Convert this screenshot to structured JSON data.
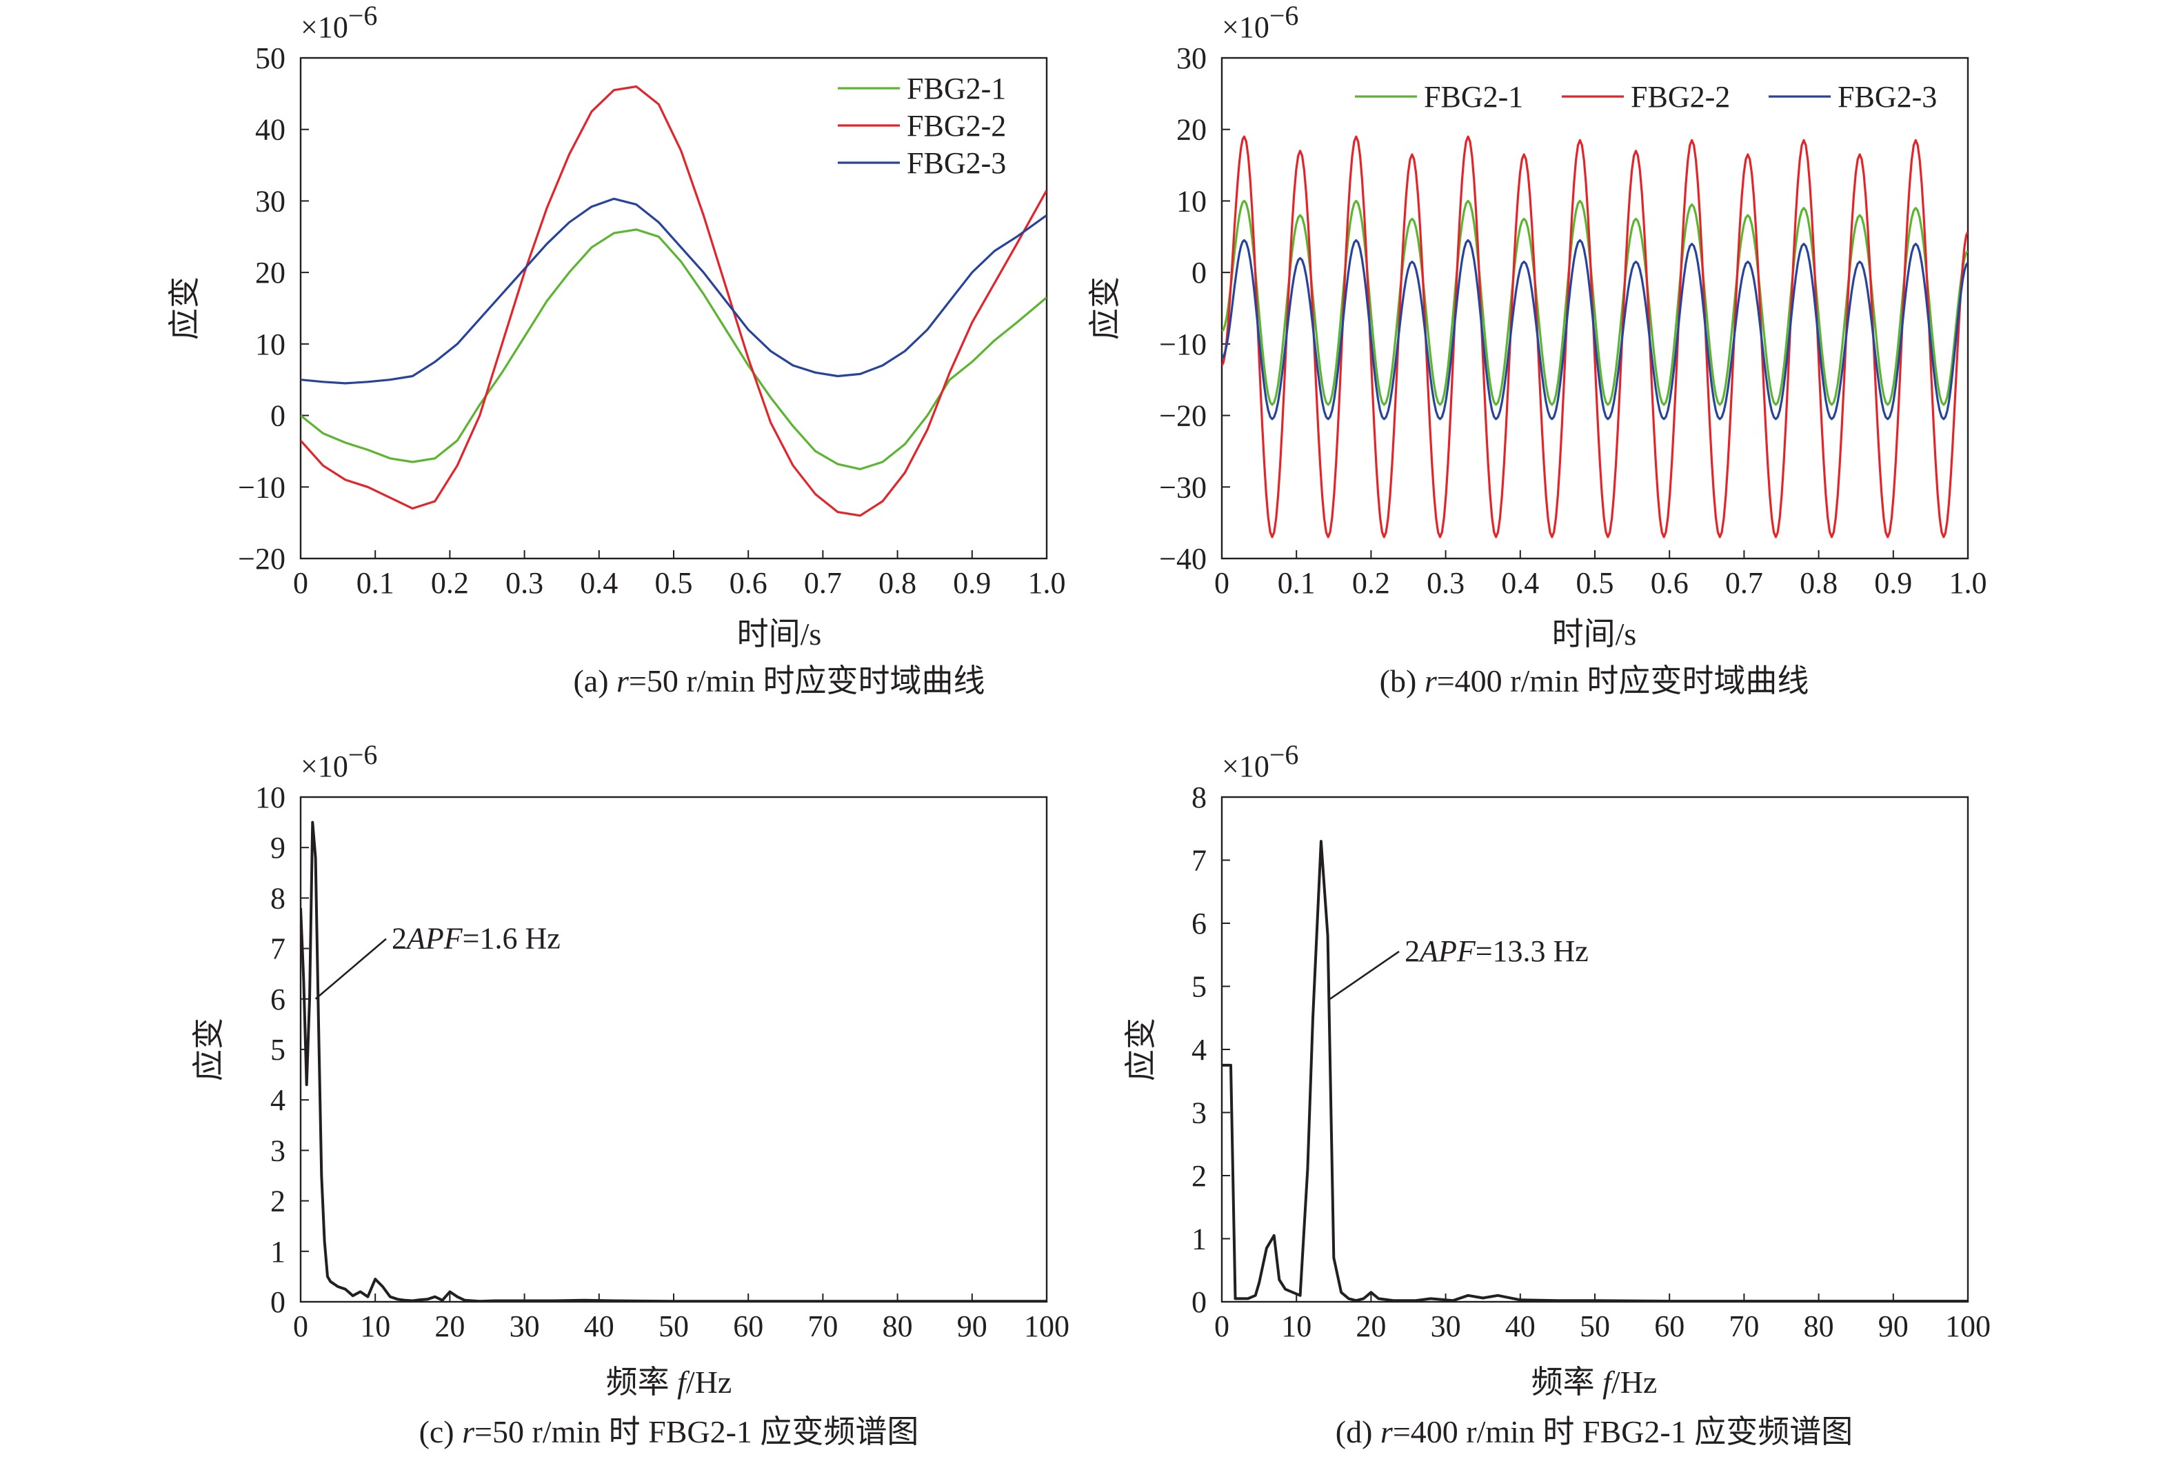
{
  "colors": {
    "FBG2-1": "#5cb531",
    "FBG2-2": "#e2252b",
    "FBG2-3": "#27449a",
    "spectrum": "#231f20",
    "axis": "#231f20"
  },
  "chart_data": [
    {
      "id": "a",
      "type": "line",
      "caption": {
        "prefix": "(a) ",
        "var": "r",
        "rest": "=50 r/min 时应变时域曲线"
      },
      "xlabel": "时间/s",
      "ylabel": "应变",
      "yexp": "×10",
      "yexp_power": "−6",
      "xlim": [
        0,
        1.0
      ],
      "ylim": [
        -20,
        50
      ],
      "xticks": [
        "0",
        "0.1",
        "0.2",
        "0.3",
        "0.4",
        "0.5",
        "0.6",
        "0.7",
        "0.8",
        "0.9",
        "1.0"
      ],
      "yticks": [
        "−20",
        "−10",
        "0",
        "10",
        "20",
        "30",
        "40",
        "50"
      ],
      "ytick_values": [
        -20,
        -10,
        0,
        10,
        20,
        30,
        40,
        50
      ],
      "legend_placement": "top-right",
      "series": [
        {
          "name": "FBG2-1",
          "x": [
            0,
            0.03,
            0.06,
            0.09,
            0.12,
            0.15,
            0.18,
            0.21,
            0.24,
            0.27,
            0.3,
            0.33,
            0.36,
            0.39,
            0.42,
            0.45,
            0.48,
            0.51,
            0.54,
            0.57,
            0.6,
            0.63,
            0.66,
            0.69,
            0.72,
            0.75,
            0.78,
            0.81,
            0.84,
            0.87,
            0.9,
            0.93,
            0.96,
            1.0
          ],
          "values": [
            0,
            -2.5,
            -3.8,
            -4.8,
            -6,
            -6.5,
            -6,
            -3.5,
            1.5,
            6,
            11,
            16,
            20,
            23.5,
            25.5,
            26,
            25,
            21.5,
            17,
            12,
            7,
            2.5,
            -1.5,
            -5,
            -6.8,
            -7.5,
            -6.5,
            -4,
            0,
            5,
            7.5,
            10.5,
            13,
            16.5
          ]
        },
        {
          "name": "FBG2-2",
          "x": [
            0,
            0.03,
            0.06,
            0.09,
            0.12,
            0.15,
            0.18,
            0.21,
            0.24,
            0.27,
            0.3,
            0.33,
            0.36,
            0.39,
            0.42,
            0.45,
            0.48,
            0.51,
            0.54,
            0.57,
            0.6,
            0.63,
            0.66,
            0.69,
            0.72,
            0.75,
            0.78,
            0.81,
            0.84,
            0.87,
            0.9,
            0.93,
            0.96,
            1.0
          ],
          "values": [
            -3.5,
            -7,
            -9,
            -10,
            -11.5,
            -13,
            -12,
            -7,
            0,
            10,
            20,
            29,
            36.5,
            42.5,
            45.5,
            46,
            43.5,
            37,
            28,
            18,
            8,
            -1,
            -7,
            -11,
            -13.5,
            -14,
            -12,
            -8,
            -2,
            6,
            13,
            18.5,
            24,
            31.5
          ]
        },
        {
          "name": "FBG2-3",
          "x": [
            0,
            0.03,
            0.06,
            0.09,
            0.12,
            0.15,
            0.18,
            0.21,
            0.24,
            0.27,
            0.3,
            0.33,
            0.36,
            0.39,
            0.42,
            0.45,
            0.48,
            0.51,
            0.54,
            0.57,
            0.6,
            0.63,
            0.66,
            0.69,
            0.72,
            0.75,
            0.78,
            0.81,
            0.84,
            0.87,
            0.9,
            0.93,
            0.96,
            1.0
          ],
          "values": [
            5,
            4.7,
            4.5,
            4.7,
            5,
            5.5,
            7.5,
            10,
            13.5,
            17,
            20.5,
            24,
            27,
            29.2,
            30.3,
            29.5,
            27,
            23.5,
            20,
            16,
            12,
            9,
            7,
            6,
            5.5,
            5.8,
            7,
            9,
            12,
            16,
            20,
            23,
            25,
            28
          ]
        }
      ]
    },
    {
      "id": "b",
      "type": "line",
      "caption": {
        "prefix": "(b) ",
        "var": "r",
        "rest": "=400 r/min 时应变时域曲线"
      },
      "xlabel": "时间/s",
      "ylabel": "应变",
      "yexp": "×10",
      "yexp_power": "−6",
      "xlim": [
        0,
        1.0
      ],
      "ylim": [
        -40,
        30
      ],
      "xticks": [
        "0",
        "0.1",
        "0.2",
        "0.3",
        "0.4",
        "0.5",
        "0.6",
        "0.7",
        "0.8",
        "0.9",
        "1.0"
      ],
      "yticks": [
        "−40",
        "−30",
        "−20",
        "−10",
        "0",
        "10",
        "20",
        "30"
      ],
      "ytick_values": [
        -40,
        -30,
        -20,
        -10,
        0,
        10,
        20,
        30
      ],
      "legend_placement": "top",
      "series": [
        {
          "name": "FBG2-1",
          "peak_times": [
            0.03,
            0.105,
            0.18,
            0.255,
            0.33,
            0.405,
            0.48,
            0.555,
            0.63,
            0.705,
            0.78,
            0.855,
            0.93
          ],
          "peak_values": [
            10,
            8,
            10,
            7.5,
            10,
            7.5,
            10,
            7.5,
            9.5,
            8,
            9,
            8,
            9
          ],
          "trough_value": -18.5,
          "period": 0.075
        },
        {
          "name": "FBG2-2",
          "peak_times": [
            0.03,
            0.105,
            0.18,
            0.255,
            0.33,
            0.405,
            0.48,
            0.555,
            0.63,
            0.705,
            0.78,
            0.855,
            0.93
          ],
          "peak_values": [
            19,
            17,
            19,
            16.5,
            19,
            16.5,
            18.5,
            17,
            18.5,
            16.5,
            18.5,
            16.5,
            18.5
          ],
          "trough_value": -37,
          "period": 0.075
        },
        {
          "name": "FBG2-3",
          "peak_times": [
            0.03,
            0.105,
            0.18,
            0.255,
            0.33,
            0.405,
            0.48,
            0.555,
            0.63,
            0.705,
            0.78,
            0.855,
            0.93
          ],
          "peak_values": [
            4.5,
            2,
            4.5,
            1.5,
            4.5,
            1.5,
            4.5,
            1.5,
            4,
            1.5,
            4,
            1.5,
            4
          ],
          "trough_value": -20.5,
          "period": 0.075
        }
      ]
    },
    {
      "id": "c",
      "type": "line",
      "caption": {
        "prefix": "(c) ",
        "var": "r",
        "rest": "=50 r/min 时 FBG2-1 应变频谱图"
      },
      "xlabel_pre": "频率 ",
      "xlabel_var": "f",
      "xlabel_post": "/Hz",
      "ylabel": "应变",
      "yexp": "×10",
      "yexp_power": "−6",
      "xlim": [
        0,
        100
      ],
      "ylim": [
        0,
        10
      ],
      "xticks": [
        "0",
        "10",
        "20",
        "30",
        "40",
        "50",
        "60",
        "70",
        "80",
        "90",
        "100"
      ],
      "yticks": [
        "0",
        "1",
        "2",
        "3",
        "4",
        "5",
        "6",
        "7",
        "8",
        "9",
        "10"
      ],
      "ytick_values": [
        0,
        1,
        2,
        3,
        4,
        5,
        6,
        7,
        8,
        9,
        10
      ],
      "annotation": {
        "pre": "2",
        "var": "APF",
        "post": "=1.6 Hz",
        "point": [
          2,
          6
        ],
        "text_at": [
          12.2,
          7.0
        ]
      },
      "series": [
        {
          "name": "FBG2-1",
          "x": [
            0,
            0.4,
            0.8,
            1.2,
            1.6,
            2.0,
            2.4,
            2.8,
            3.2,
            3.6,
            4.0,
            5,
            6,
            7,
            8,
            9,
            10,
            11,
            12,
            13,
            14,
            15,
            16,
            17,
            18,
            19,
            20,
            21,
            22,
            23,
            24,
            26,
            30,
            34,
            38,
            42,
            50,
            60,
            70,
            80,
            90,
            100
          ],
          "values": [
            7.8,
            6.4,
            4.3,
            6.0,
            9.5,
            8.8,
            5.5,
            2.5,
            1.2,
            0.5,
            0.4,
            0.3,
            0.25,
            0.12,
            0.2,
            0.1,
            0.45,
            0.3,
            0.1,
            0.05,
            0.03,
            0.02,
            0.04,
            0.05,
            0.1,
            0.03,
            0.2,
            0.1,
            0.03,
            0.02,
            0.01,
            0.02,
            0.02,
            0.02,
            0.03,
            0.02,
            0.01,
            0.01,
            0.01,
            0.01,
            0.01,
            0.01
          ]
        }
      ]
    },
    {
      "id": "d",
      "type": "line",
      "caption": {
        "prefix": "(d) ",
        "var": "r",
        "rest": "=400 r/min 时 FBG2-1 应变频谱图"
      },
      "xlabel_pre": "频率 ",
      "xlabel_var": "f",
      "xlabel_post": "/Hz",
      "ylabel": "应变",
      "yexp": "×10",
      "yexp_power": "−6",
      "xlim": [
        0,
        100
      ],
      "ylim": [
        0,
        8
      ],
      "xticks": [
        "0",
        "10",
        "20",
        "30",
        "40",
        "50",
        "60",
        "70",
        "80",
        "90",
        "100"
      ],
      "yticks": [
        "0",
        "1",
        "2",
        "3",
        "4",
        "5",
        "6",
        "7",
        "8"
      ],
      "ytick_values": [
        0,
        1,
        2,
        3,
        4,
        5,
        6,
        7,
        8
      ],
      "annotation": {
        "pre": "2",
        "var": "APF",
        "post": "=13.3 Hz",
        "point": [
          14.5,
          4.8
        ],
        "text_at": [
          24.5,
          5.4
        ]
      },
      "series": [
        {
          "name": "FBG2-1",
          "x": [
            0,
            1.2,
            1.8,
            2.5,
            3.5,
            4.5,
            5,
            6,
            7,
            7.7,
            8.5,
            9.5,
            10.5,
            11.5,
            12.2,
            13.3,
            14.2,
            15,
            16,
            17,
            18,
            19,
            20,
            21,
            23,
            26,
            28,
            31,
            33,
            35,
            37,
            40,
            45,
            50,
            60,
            70,
            80,
            90,
            100
          ],
          "values": [
            3.75,
            3.75,
            0.05,
            0.05,
            0.05,
            0.1,
            0.3,
            0.85,
            1.05,
            0.35,
            0.2,
            0.15,
            0.1,
            2.1,
            4.5,
            7.3,
            5.8,
            0.7,
            0.15,
            0.05,
            0.02,
            0.05,
            0.15,
            0.05,
            0.02,
            0.02,
            0.05,
            0.02,
            0.1,
            0.06,
            0.1,
            0.03,
            0.02,
            0.02,
            0.01,
            0.01,
            0.01,
            0.01,
            0.01
          ]
        }
      ]
    }
  ]
}
